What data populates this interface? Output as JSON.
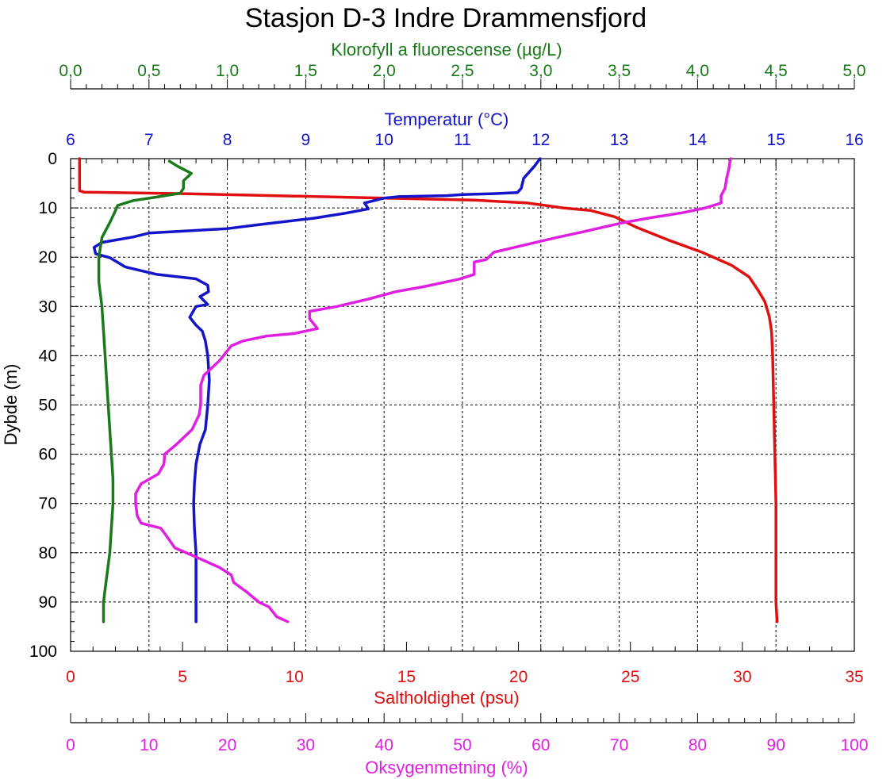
{
  "chart_data": {
    "type": "line",
    "title": "Stasjon D-3 Indre Drammensfjord",
    "y_axis": {
      "label": "Dybde (m)",
      "range": [
        0,
        100
      ],
      "inverted": true,
      "ticks": [
        0,
        10,
        20,
        30,
        40,
        50,
        60,
        70,
        80,
        90,
        100
      ],
      "tick_labels": [
        "0",
        "10",
        "20",
        "30",
        "40",
        "50",
        "60",
        "70",
        "80",
        "90",
        "100"
      ]
    },
    "grid": true,
    "x_axes": [
      {
        "id": "chlorophyll",
        "label": "Klorofyll a fluorescense (µg/L)",
        "position": "top-outer",
        "color": "#1a7a1a",
        "range": [
          0,
          5
        ],
        "ticks": [
          0,
          0.5,
          1,
          1.5,
          2,
          2.5,
          3,
          3.5,
          4,
          4.5,
          5
        ],
        "tick_labels": [
          "0,0",
          "0,5",
          "1,0",
          "1,5",
          "2,0",
          "2,5",
          "3,0",
          "3,5",
          "4,0",
          "4,5",
          "5,0"
        ]
      },
      {
        "id": "temperature",
        "label": "Temperatur (°C)",
        "position": "top-inner",
        "color": "#1414c8",
        "range": [
          6,
          16
        ],
        "ticks": [
          6,
          7,
          8,
          9,
          10,
          11,
          12,
          13,
          14,
          15,
          16
        ],
        "tick_labels": [
          "6",
          "7",
          "8",
          "9",
          "10",
          "11",
          "12",
          "13",
          "14",
          "15",
          "16"
        ]
      },
      {
        "id": "salinity",
        "label": "Saltholdighet (psu)",
        "position": "bottom-inner",
        "color": "#e01010",
        "range": [
          0,
          35
        ],
        "ticks": [
          0,
          5,
          10,
          15,
          20,
          25,
          30,
          35
        ],
        "tick_labels": [
          "0",
          "5",
          "10",
          "15",
          "20",
          "25",
          "30",
          "35"
        ]
      },
      {
        "id": "oxygen",
        "label": "Oksygenmetning (%)",
        "position": "bottom-outer",
        "color": "#e020e0",
        "range": [
          0,
          100
        ],
        "ticks": [
          0,
          10,
          20,
          30,
          40,
          50,
          60,
          70,
          80,
          90,
          100
        ],
        "tick_labels": [
          "0",
          "10",
          "20",
          "30",
          "40",
          "50",
          "60",
          "70",
          "80",
          "90",
          "100"
        ]
      }
    ],
    "series": [
      {
        "axis": "salinity",
        "color": "#e01010",
        "points": [
          [
            0.4,
            0
          ],
          [
            0.4,
            6.5
          ],
          [
            0.6,
            6.8
          ],
          [
            5,
            7.1
          ],
          [
            10,
            7.6
          ],
          [
            14,
            8.0
          ],
          [
            18,
            8.4
          ],
          [
            20.4,
            9.0
          ],
          [
            22,
            10.0
          ],
          [
            23.2,
            10.5
          ],
          [
            24.3,
            11.8
          ],
          [
            25.3,
            14.0
          ],
          [
            26.8,
            16.7
          ],
          [
            28.2,
            19.0
          ],
          [
            29.5,
            21.6
          ],
          [
            30.3,
            24.0
          ],
          [
            30.7,
            26.7
          ],
          [
            31.0,
            29.0
          ],
          [
            31.2,
            32.0
          ],
          [
            31.3,
            35.0
          ],
          [
            31.35,
            40.0
          ],
          [
            31.4,
            50.0
          ],
          [
            31.45,
            60.0
          ],
          [
            31.5,
            70.0
          ],
          [
            31.5,
            80.0
          ],
          [
            31.5,
            90.0
          ],
          [
            31.55,
            94.0
          ]
        ]
      },
      {
        "axis": "temperature",
        "color": "#1414c8",
        "points": [
          [
            11.99,
            0
          ],
          [
            11.92,
            1.5
          ],
          [
            11.78,
            4.0
          ],
          [
            11.75,
            6.0
          ],
          [
            11.7,
            6.9
          ],
          [
            11.4,
            7.1
          ],
          [
            11.0,
            7.3
          ],
          [
            10.8,
            7.5
          ],
          [
            10.2,
            7.7
          ],
          [
            10.0,
            8.0
          ],
          [
            9.75,
            9.0
          ],
          [
            9.8,
            10.2
          ],
          [
            9.5,
            11.1
          ],
          [
            9.1,
            12.1
          ],
          [
            8.4,
            13.4
          ],
          [
            8.0,
            14.2
          ],
          [
            7.0,
            15.1
          ],
          [
            6.8,
            15.9
          ],
          [
            6.4,
            17.0
          ],
          [
            6.3,
            18.0
          ],
          [
            6.32,
            19.3
          ],
          [
            6.5,
            20.1
          ],
          [
            6.7,
            22.0
          ],
          [
            7.1,
            23.5
          ],
          [
            7.6,
            24.4
          ],
          [
            7.75,
            25.7
          ],
          [
            7.76,
            27.0
          ],
          [
            7.65,
            28.0
          ],
          [
            7.75,
            29.6
          ],
          [
            7.6,
            30.0
          ],
          [
            7.52,
            32.2
          ],
          [
            7.6,
            33.8
          ],
          [
            7.68,
            35.0
          ],
          [
            7.72,
            37.0
          ],
          [
            7.75,
            40.0
          ],
          [
            7.77,
            45.0
          ],
          [
            7.75,
            50.0
          ],
          [
            7.72,
            55.0
          ],
          [
            7.65,
            58.0
          ],
          [
            7.6,
            62.0
          ],
          [
            7.58,
            66.0
          ],
          [
            7.57,
            70.0
          ],
          [
            7.58,
            75.0
          ],
          [
            7.6,
            80.0
          ],
          [
            7.6,
            87.0
          ],
          [
            7.6,
            94.0
          ]
        ]
      },
      {
        "axis": "chlorophyll",
        "color": "#1a7a1a",
        "points": [
          [
            0.63,
            0.5
          ],
          [
            0.68,
            1.5
          ],
          [
            0.77,
            3.0
          ],
          [
            0.72,
            4.5
          ],
          [
            0.72,
            6.0
          ],
          [
            0.7,
            7.0
          ],
          [
            0.55,
            7.8
          ],
          [
            0.4,
            8.5
          ],
          [
            0.3,
            9.5
          ],
          [
            0.28,
            11.0
          ],
          [
            0.25,
            13.0
          ],
          [
            0.2,
            16.0
          ],
          [
            0.18,
            20.0
          ],
          [
            0.18,
            25.0
          ],
          [
            0.2,
            30.0
          ],
          [
            0.21,
            35.0
          ],
          [
            0.22,
            40.0
          ],
          [
            0.23,
            45.0
          ],
          [
            0.24,
            50.0
          ],
          [
            0.25,
            55.0
          ],
          [
            0.26,
            60.0
          ],
          [
            0.27,
            65.0
          ],
          [
            0.27,
            70.0
          ],
          [
            0.26,
            75.0
          ],
          [
            0.25,
            80.0
          ],
          [
            0.23,
            85.0
          ],
          [
            0.21,
            90.0
          ],
          [
            0.21,
            94.0
          ]
        ]
      },
      {
        "axis": "oxygen",
        "color": "#e020e0",
        "points": [
          [
            84.2,
            0
          ],
          [
            84.0,
            2.0
          ],
          [
            83.7,
            4.0
          ],
          [
            83.5,
            6.0
          ],
          [
            83.0,
            7.5
          ],
          [
            83.0,
            9.0
          ],
          [
            81.0,
            10.0
          ],
          [
            78.0,
            11.0
          ],
          [
            74.0,
            12.0
          ],
          [
            70.5,
            13.0
          ],
          [
            65.0,
            15.0
          ],
          [
            62.0,
            16.0
          ],
          [
            58.0,
            17.5
          ],
          [
            54.0,
            19.0
          ],
          [
            53.0,
            20.5
          ],
          [
            51.5,
            21.0
          ],
          [
            51.5,
            23.5
          ],
          [
            49.5,
            24.5
          ],
          [
            45.0,
            26.0
          ],
          [
            41.5,
            27.0
          ],
          [
            38.0,
            28.5
          ],
          [
            34.0,
            30.0
          ],
          [
            30.5,
            31.0
          ],
          [
            30.5,
            32.5
          ],
          [
            31.5,
            34.5
          ],
          [
            28.5,
            35.5
          ],
          [
            25.0,
            36.0
          ],
          [
            22.0,
            37.0
          ],
          [
            20.5,
            38.0
          ],
          [
            19.0,
            41.0
          ],
          [
            17.0,
            44.0
          ],
          [
            16.6,
            46.0
          ],
          [
            16.6,
            50.0
          ],
          [
            16.4,
            52.0
          ],
          [
            15.5,
            55.0
          ],
          [
            13.5,
            58.0
          ],
          [
            12.0,
            60.0
          ],
          [
            11.9,
            62.0
          ],
          [
            11.2,
            64.0
          ],
          [
            9.0,
            66.0
          ],
          [
            8.3,
            68.0
          ],
          [
            8.3,
            70.0
          ],
          [
            8.5,
            72.5
          ],
          [
            9.0,
            74.0
          ],
          [
            11.5,
            75.0
          ],
          [
            12.2,
            76.5
          ],
          [
            13.3,
            79.0
          ],
          [
            16.2,
            81.0
          ],
          [
            19.0,
            83.0
          ],
          [
            20.5,
            84.5
          ],
          [
            20.8,
            86.0
          ],
          [
            22.5,
            88.0
          ],
          [
            24.0,
            90.0
          ],
          [
            25.3,
            91.0
          ],
          [
            26.3,
            93.0
          ],
          [
            27.7,
            94.0
          ]
        ]
      }
    ]
  }
}
